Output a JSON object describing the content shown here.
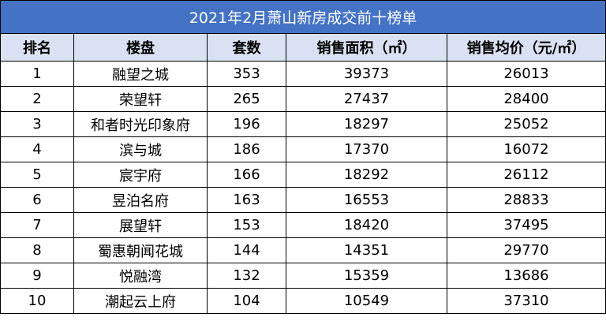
{
  "title": "2021年2月萧山新房成交前十榜单",
  "colors": {
    "title_bg": "#4472c4",
    "title_text": "#ffffff",
    "header_bg": "#d9e1f2",
    "border": "#000000"
  },
  "columns": [
    "排名",
    "楼盘",
    "套数",
    "销售面积（㎡）",
    "销售均价（元/㎡）"
  ],
  "rows": [
    [
      "1",
      "融望之城",
      "353",
      "39373",
      "26013"
    ],
    [
      "2",
      "荣望轩",
      "265",
      "27437",
      "28400"
    ],
    [
      "3",
      "和者时光印象府",
      "196",
      "18297",
      "25052"
    ],
    [
      "4",
      "滨与城",
      "186",
      "17370",
      "16072"
    ],
    [
      "5",
      "宸宇府",
      "166",
      "18292",
      "26112"
    ],
    [
      "6",
      "昱泊名府",
      "163",
      "16553",
      "28833"
    ],
    [
      "7",
      "展望轩",
      "153",
      "18420",
      "37495"
    ],
    [
      "8",
      "蜀惠朝闻花城",
      "144",
      "14351",
      "29770"
    ],
    [
      "9",
      "悦融湾",
      "132",
      "15359",
      "13686"
    ],
    [
      "10",
      "潮起云上府",
      "104",
      "10549",
      "37310"
    ]
  ]
}
